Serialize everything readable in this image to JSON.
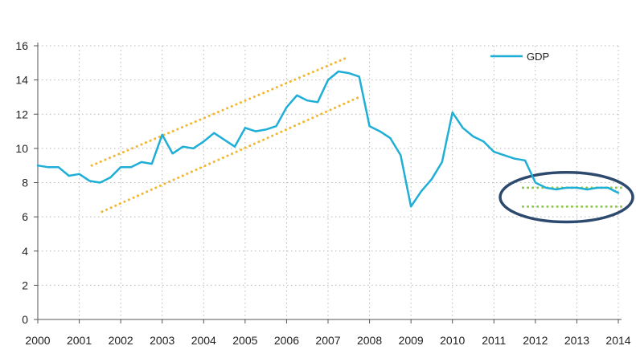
{
  "chart_data": {
    "type": "line",
    "title": "",
    "xlabel": "",
    "ylabel": "",
    "x_tick_labels": [
      "2000",
      "2001",
      "2002",
      "2003",
      "2004",
      "2005",
      "2006",
      "2007",
      "2008",
      "2009",
      "2010",
      "2011",
      "2012",
      "2013",
      "2014"
    ],
    "y_tick_labels": [
      "0",
      "2",
      "4",
      "6",
      "8",
      "10",
      "12",
      "14",
      "16"
    ],
    "ylim": [
      0,
      16
    ],
    "xlim": [
      2000,
      2014
    ],
    "grid": "dotted",
    "legend": {
      "position": "top-right"
    },
    "series": [
      {
        "name": "GDP",
        "color": "#1eaed6",
        "x": [
          2000.0,
          2000.25,
          2000.5,
          2000.75,
          2001.0,
          2001.25,
          2001.5,
          2001.75,
          2002.0,
          2002.25,
          2002.5,
          2002.75,
          2003.0,
          2003.25,
          2003.5,
          2003.75,
          2004.0,
          2004.25,
          2004.5,
          2004.75,
          2005.0,
          2005.25,
          2005.5,
          2005.75,
          2006.0,
          2006.25,
          2006.5,
          2006.75,
          2007.0,
          2007.25,
          2007.5,
          2007.75,
          2008.0,
          2008.25,
          2008.5,
          2008.75,
          2009.0,
          2009.25,
          2009.5,
          2009.75,
          2010.0,
          2010.25,
          2010.5,
          2010.75,
          2011.0,
          2011.25,
          2011.5,
          2011.75,
          2012.0,
          2012.25,
          2012.5,
          2012.75,
          2013.0,
          2013.25,
          2013.5,
          2013.75,
          2014.0
        ],
        "values": [
          9.0,
          8.9,
          8.9,
          8.4,
          8.5,
          8.1,
          8.0,
          8.3,
          8.9,
          8.9,
          9.2,
          9.1,
          10.8,
          9.7,
          10.1,
          10.0,
          10.4,
          10.9,
          10.5,
          10.1,
          11.2,
          11.0,
          11.1,
          11.3,
          12.4,
          13.1,
          12.8,
          12.7,
          14.0,
          14.5,
          14.4,
          14.2,
          11.3,
          11.0,
          10.6,
          9.6,
          6.6,
          7.5,
          8.2,
          9.2,
          12.1,
          11.2,
          10.7,
          10.4,
          9.8,
          9.6,
          9.4,
          9.3,
          8.0,
          7.7,
          7.6,
          7.7,
          7.7,
          7.6,
          7.7,
          7.7,
          7.4
        ]
      }
    ],
    "annotations": [
      {
        "type": "trend-line",
        "color": "#f2b730",
        "x": [
          2001.3,
          2007.45
        ],
        "y": [
          9.0,
          15.3
        ]
      },
      {
        "type": "trend-line",
        "color": "#f2b730",
        "x": [
          2001.55,
          2007.75
        ],
        "y": [
          6.3,
          13.0
        ]
      },
      {
        "type": "band-line",
        "color": "#8fca4e",
        "x": [
          2011.7,
          2014.1
        ],
        "y": [
          7.7,
          7.7
        ]
      },
      {
        "type": "band-line",
        "color": "#8fca4e",
        "x": [
          2011.7,
          2014.1
        ],
        "y": [
          6.6,
          6.6
        ]
      },
      {
        "type": "ellipse",
        "color": "#2d4a6e",
        "center": [
          2012.75,
          7.15
        ],
        "radius_x": 1.6,
        "radius_y": 1.45
      }
    ]
  }
}
